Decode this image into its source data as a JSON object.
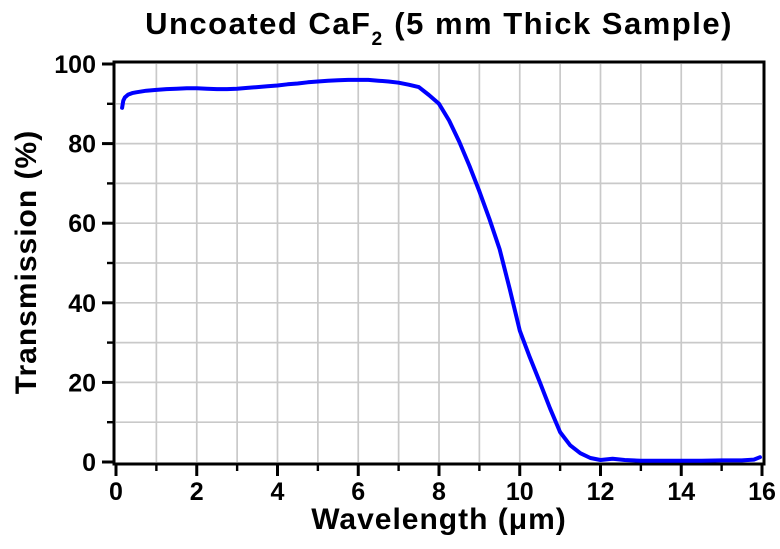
{
  "figure": {
    "title_prefix": "Uncoated CaF",
    "title_sub": "2",
    "title_suffix": " (5 mm Thick Sample)"
  },
  "colors": {
    "curve": "#0000ff",
    "grid": "#c9c9c9",
    "axis": "#000000",
    "text": "#000000",
    "background": "#ffffff"
  },
  "chart_data": {
    "type": "line",
    "title": "Uncoated CaF₂ (5 mm Thick Sample)",
    "xlabel": "Wavelength (μm)",
    "ylabel": "Transmission (%)",
    "xlim": [
      0,
      16
    ],
    "ylim": [
      0,
      100
    ],
    "x_major_ticks": [
      0,
      2,
      4,
      6,
      8,
      10,
      12,
      14,
      16
    ],
    "x_minor_ticks": [
      1,
      3,
      5,
      7,
      9,
      11,
      13,
      15
    ],
    "y_major_ticks": [
      0,
      20,
      40,
      60,
      80,
      100
    ],
    "y_minor_ticks": [
      10,
      30,
      50,
      70,
      90
    ],
    "grid": "minor and major gridlines, light gray, on",
    "legend": "none",
    "series": [
      {
        "name": "Transmission",
        "color": "#0000ff",
        "points": [
          [
            0.15,
            89.0
          ],
          [
            0.18,
            90.8
          ],
          [
            0.22,
            91.6
          ],
          [
            0.3,
            92.3
          ],
          [
            0.4,
            92.7
          ],
          [
            0.5,
            92.9
          ],
          [
            0.75,
            93.3
          ],
          [
            1.0,
            93.5
          ],
          [
            1.25,
            93.7
          ],
          [
            1.5,
            93.8
          ],
          [
            1.75,
            93.9
          ],
          [
            2.0,
            93.9
          ],
          [
            2.25,
            93.8
          ],
          [
            2.5,
            93.7
          ],
          [
            2.75,
            93.7
          ],
          [
            3.0,
            93.8
          ],
          [
            3.25,
            94.0
          ],
          [
            3.5,
            94.2
          ],
          [
            3.75,
            94.4
          ],
          [
            4.0,
            94.6
          ],
          [
            4.25,
            94.9
          ],
          [
            4.5,
            95.1
          ],
          [
            4.75,
            95.4
          ],
          [
            5.0,
            95.6
          ],
          [
            5.25,
            95.8
          ],
          [
            5.5,
            95.9
          ],
          [
            5.75,
            96.0
          ],
          [
            6.0,
            96.0
          ],
          [
            6.25,
            96.0
          ],
          [
            6.5,
            95.8
          ],
          [
            6.75,
            95.6
          ],
          [
            7.0,
            95.3
          ],
          [
            7.25,
            94.8
          ],
          [
            7.5,
            94.2
          ],
          [
            7.75,
            92.2
          ],
          [
            8.0,
            90.0
          ],
          [
            8.25,
            85.8
          ],
          [
            8.5,
            80.5
          ],
          [
            8.75,
            74.5
          ],
          [
            9.0,
            68.0
          ],
          [
            9.25,
            61.0
          ],
          [
            9.5,
            53.5
          ],
          [
            9.75,
            43.5
          ],
          [
            10.0,
            33.0
          ],
          [
            10.25,
            26.3
          ],
          [
            10.5,
            20.0
          ],
          [
            10.75,
            13.5
          ],
          [
            11.0,
            7.5
          ],
          [
            11.25,
            4.2
          ],
          [
            11.5,
            2.2
          ],
          [
            11.75,
            1.0
          ],
          [
            12.0,
            0.5
          ],
          [
            12.3,
            0.8
          ],
          [
            12.6,
            0.5
          ],
          [
            13.0,
            0.3
          ],
          [
            13.5,
            0.3
          ],
          [
            14.0,
            0.3
          ],
          [
            14.5,
            0.3
          ],
          [
            15.0,
            0.4
          ],
          [
            15.5,
            0.4
          ],
          [
            15.8,
            0.6
          ],
          [
            15.95,
            1.2
          ]
        ]
      }
    ]
  }
}
